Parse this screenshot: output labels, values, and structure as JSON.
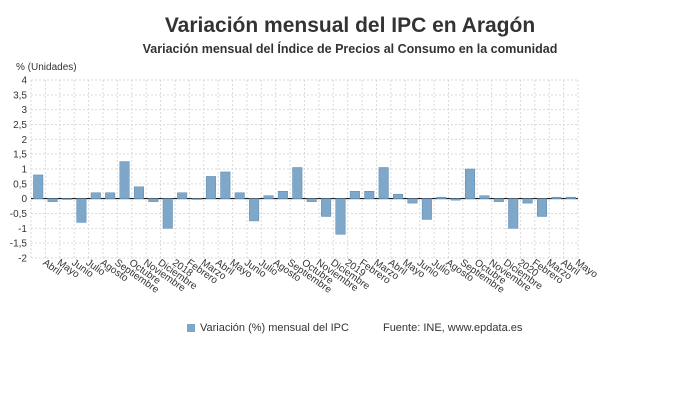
{
  "header": {
    "title": "Variación mensual del IPC en Aragón",
    "subtitle": "Variación mensual del Índice de Precios al Consumo en la comunidad"
  },
  "legend": {
    "series_label": "Variación (%) mensual del IPC",
    "source": "Fuente: INE, www.epdata.es"
  },
  "colors": {
    "bar": "#7ea7c9",
    "bar_stroke": "#5c88ad",
    "grid": "#d9d9d9",
    "axis_text": "#333333"
  },
  "chart_data": {
    "type": "bar",
    "title": "Variación mensual del IPC en Aragón",
    "subtitle": "Variación mensual del Índice de Precios al Consumo en la comunidad",
    "ylabel": "% (Unidades)",
    "xlabel": "",
    "ylim": [
      -2,
      4
    ],
    "yticks": [
      -2,
      -1.5,
      -1,
      -0.5,
      0,
      0.5,
      1,
      1.5,
      2,
      2.5,
      3,
      3.5,
      4
    ],
    "ytick_labels": [
      "-2",
      "-1,5",
      "-1",
      "-0,5",
      "0",
      "0,5",
      "1",
      "1,5",
      "2",
      "2,5",
      "3",
      "3,5",
      "4"
    ],
    "grid": true,
    "legend_position": "bottom",
    "categories": [
      "Abril",
      "Mayo",
      "Junio",
      "Julio",
      "Agosto",
      "Septiembre",
      "Octubre",
      "Noviembre",
      "Diciembre",
      "2018",
      "Febrero",
      "Marzo",
      "Abril",
      "Mayo",
      "Junio",
      "Julio",
      "Agosto",
      "Septiembre",
      "Octubre",
      "Noviembre",
      "Diciembre",
      "2019",
      "Febrero",
      "Marzo",
      "Abril",
      "Mayo",
      "Junio",
      "Julio",
      "Agosto",
      "Septiembre",
      "Octubre",
      "Noviembre",
      "Diciembre",
      "2020",
      "Febrero",
      "Marzo",
      "Abril",
      "Mayo"
    ],
    "series": [
      {
        "name": "Variación (%) mensual del IPC",
        "values": [
          0.8,
          -0.1,
          0.0,
          -0.8,
          0.2,
          0.2,
          1.25,
          0.4,
          -0.1,
          -1.0,
          0.2,
          0.0,
          0.75,
          0.9,
          0.2,
          -0.75,
          0.1,
          0.25,
          1.05,
          -0.1,
          -0.6,
          -1.2,
          0.25,
          0.25,
          1.05,
          0.15,
          -0.15,
          -0.7,
          0.05,
          -0.05,
          1.0,
          0.1,
          -0.1,
          -1.0,
          -0.15,
          -0.6,
          0.05,
          0.05
        ]
      }
    ]
  }
}
